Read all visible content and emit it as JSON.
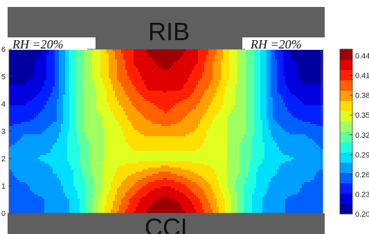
{
  "chart_data": {
    "type": "heatmap",
    "subtype": "filled-contour",
    "x_range": [
      0,
      1
    ],
    "ylim": [
      0,
      6
    ],
    "y_ticks": [
      "0",
      "1",
      "2",
      "3",
      "4",
      "5",
      "6"
    ],
    "top_label": "RIB",
    "bottom_label": "CCL",
    "annotations": [
      "RH =20%",
      "RH =20%"
    ],
    "colorbar": {
      "range": [
        0.2,
        0.45
      ],
      "tick_labels": [
        "0.44",
        "0.41",
        "0.38",
        "0.35",
        "0.32",
        "0.29",
        "0.26",
        "0.23",
        "0.20"
      ],
      "colormap": "jet"
    },
    "field": {
      "description": "Scalar field of approximately 0.20–0.45; minimum near the left/right edges under RH=20% inlet, maximum at the centre of the top (RIB) and bottom (CCL) boundaries, with a narrower waist near y=2.",
      "x": [
        0.0,
        0.05,
        0.1,
        0.15,
        0.2,
        0.25,
        0.3,
        0.35,
        0.4,
        0.45,
        0.5,
        0.55,
        0.6,
        0.65,
        0.7,
        0.75,
        0.8,
        0.85,
        0.9,
        0.95,
        1.0
      ],
      "y": [
        0.0,
        0.5,
        1.0,
        1.5,
        2.0,
        2.5,
        3.0,
        3.5,
        4.0,
        4.5,
        5.0,
        5.5,
        6.0
      ],
      "z": [
        [
          0.25,
          0.25,
          0.26,
          0.27,
          0.28,
          0.31,
          0.35,
          0.39,
          0.42,
          0.44,
          0.45,
          0.44,
          0.42,
          0.39,
          0.35,
          0.31,
          0.28,
          0.27,
          0.26,
          0.25,
          0.25
        ],
        [
          0.25,
          0.26,
          0.26,
          0.27,
          0.28,
          0.31,
          0.35,
          0.38,
          0.41,
          0.43,
          0.44,
          0.43,
          0.41,
          0.38,
          0.35,
          0.31,
          0.28,
          0.27,
          0.26,
          0.26,
          0.25
        ],
        [
          0.26,
          0.26,
          0.27,
          0.27,
          0.29,
          0.31,
          0.34,
          0.37,
          0.39,
          0.41,
          0.42,
          0.41,
          0.39,
          0.37,
          0.34,
          0.31,
          0.29,
          0.27,
          0.27,
          0.26,
          0.26
        ],
        [
          0.26,
          0.27,
          0.27,
          0.28,
          0.29,
          0.32,
          0.34,
          0.36,
          0.37,
          0.38,
          0.39,
          0.38,
          0.37,
          0.36,
          0.34,
          0.32,
          0.29,
          0.28,
          0.27,
          0.27,
          0.26
        ],
        [
          0.27,
          0.27,
          0.28,
          0.28,
          0.3,
          0.32,
          0.34,
          0.35,
          0.35,
          0.35,
          0.35,
          0.35,
          0.35,
          0.35,
          0.34,
          0.32,
          0.3,
          0.28,
          0.28,
          0.27,
          0.27
        ],
        [
          0.26,
          0.27,
          0.27,
          0.28,
          0.3,
          0.32,
          0.34,
          0.35,
          0.36,
          0.36,
          0.36,
          0.36,
          0.36,
          0.35,
          0.34,
          0.32,
          0.3,
          0.28,
          0.27,
          0.27,
          0.26
        ],
        [
          0.25,
          0.26,
          0.26,
          0.27,
          0.3,
          0.33,
          0.34,
          0.35,
          0.37,
          0.38,
          0.38,
          0.38,
          0.37,
          0.35,
          0.34,
          0.33,
          0.3,
          0.27,
          0.26,
          0.26,
          0.25
        ],
        [
          0.24,
          0.24,
          0.25,
          0.26,
          0.3,
          0.33,
          0.34,
          0.36,
          0.38,
          0.39,
          0.4,
          0.39,
          0.38,
          0.36,
          0.34,
          0.33,
          0.3,
          0.26,
          0.25,
          0.24,
          0.24
        ],
        [
          0.23,
          0.23,
          0.24,
          0.26,
          0.3,
          0.33,
          0.35,
          0.37,
          0.39,
          0.4,
          0.41,
          0.4,
          0.39,
          0.37,
          0.35,
          0.33,
          0.3,
          0.26,
          0.24,
          0.23,
          0.23
        ],
        [
          0.22,
          0.22,
          0.23,
          0.25,
          0.3,
          0.33,
          0.35,
          0.38,
          0.4,
          0.42,
          0.42,
          0.42,
          0.4,
          0.38,
          0.35,
          0.33,
          0.3,
          0.25,
          0.23,
          0.22,
          0.22
        ],
        [
          0.21,
          0.21,
          0.22,
          0.25,
          0.3,
          0.33,
          0.36,
          0.39,
          0.41,
          0.43,
          0.43,
          0.43,
          0.41,
          0.39,
          0.36,
          0.33,
          0.3,
          0.25,
          0.22,
          0.21,
          0.21
        ],
        [
          0.2,
          0.21,
          0.22,
          0.25,
          0.3,
          0.33,
          0.36,
          0.39,
          0.42,
          0.43,
          0.44,
          0.43,
          0.42,
          0.39,
          0.36,
          0.33,
          0.3,
          0.25,
          0.22,
          0.21,
          0.2
        ],
        [
          0.2,
          0.2,
          0.21,
          0.25,
          0.3,
          0.33,
          0.36,
          0.4,
          0.42,
          0.44,
          0.45,
          0.44,
          0.42,
          0.4,
          0.36,
          0.33,
          0.3,
          0.25,
          0.21,
          0.2,
          0.2
        ]
      ]
    }
  }
}
